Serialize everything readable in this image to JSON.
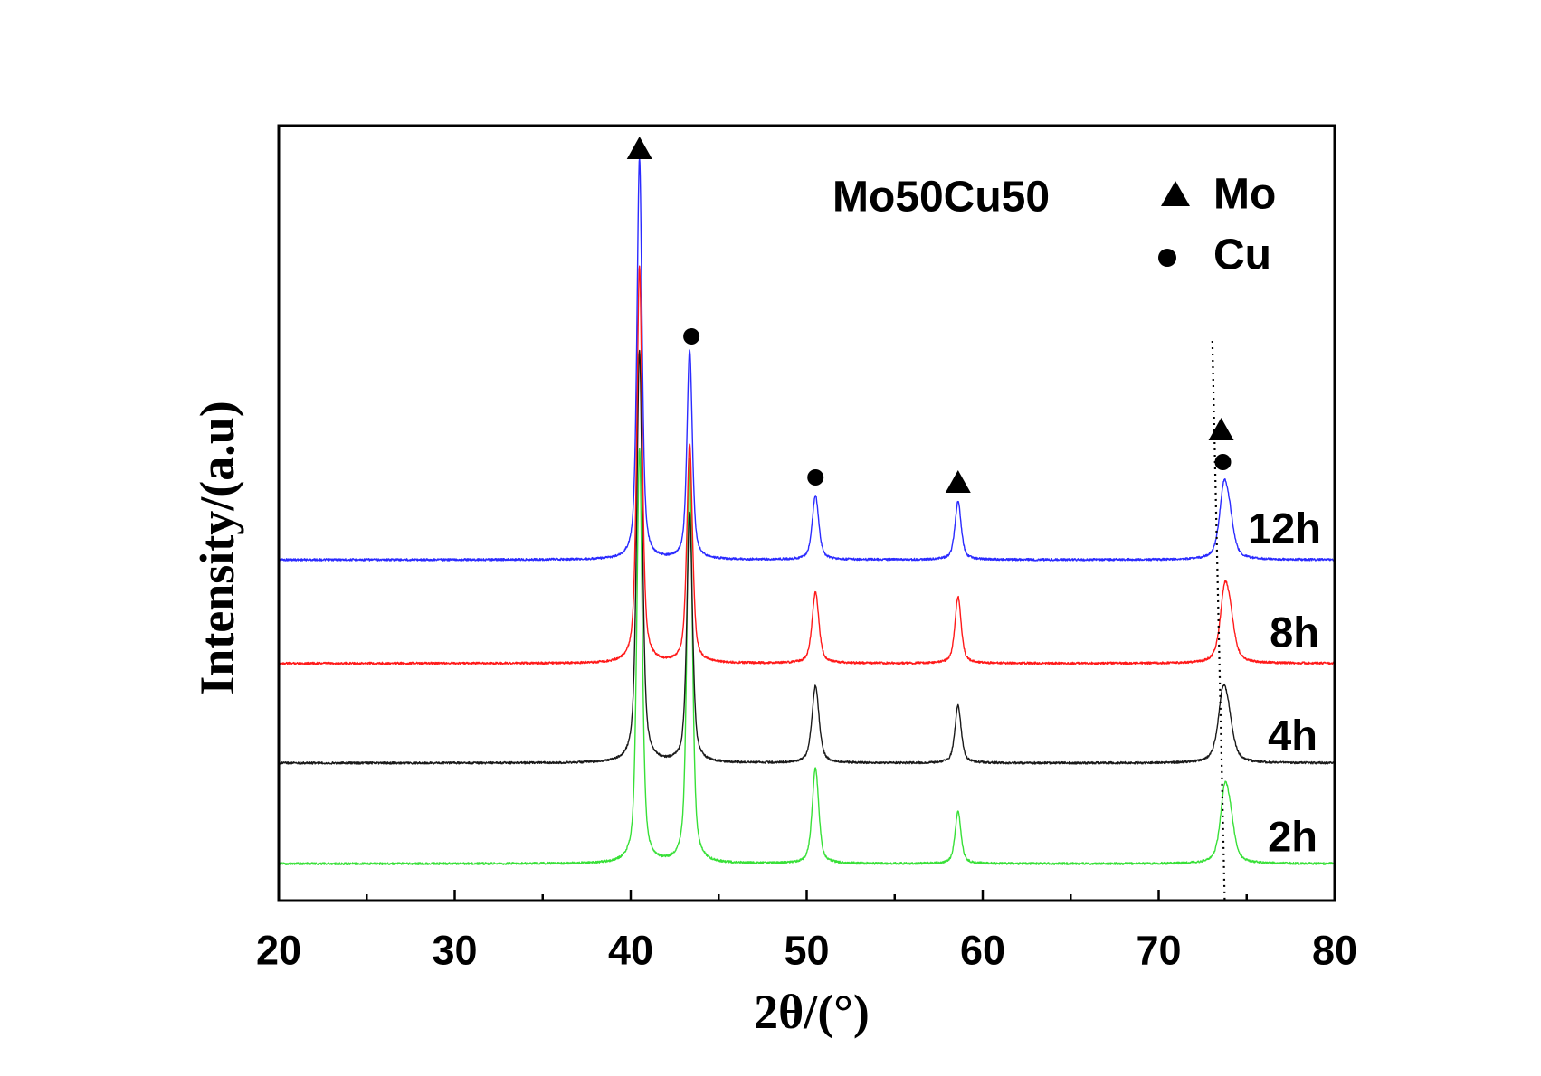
{
  "chart_data": {
    "type": "line",
    "title": "Mo50Cu50",
    "xlabel": "2θ/(°)",
    "ylabel": "Intensity/(a.u)",
    "xlim": [
      20,
      80
    ],
    "xticks": [
      20,
      30,
      40,
      50,
      60,
      70,
      80
    ],
    "xticklabels": [
      "20",
      "30",
      "40",
      "50",
      "60",
      "70",
      "80"
    ],
    "x_minor_step": 5,
    "y_ticks": false,
    "grid": false,
    "legend": {
      "placement": "top-right",
      "entries": [
        {
          "symbol": "triangle-icon",
          "label": "Mo"
        },
        {
          "symbol": "dot-icon",
          "label": "Cu"
        }
      ]
    },
    "series": [
      {
        "name": "12h",
        "color": "#2b2bff",
        "peaks": [
          {
            "x": 40.5,
            "intensity": 96.9,
            "fwhm": 0.34
          },
          {
            "x": 43.35,
            "intensity": 50.5,
            "fwhm": 0.36
          },
          {
            "x": 50.5,
            "intensity": 15.5,
            "fwhm": 0.44
          },
          {
            "x": 58.6,
            "intensity": 14.0,
            "fwhm": 0.42
          },
          {
            "x": 73.7,
            "intensity": 19.0,
            "fwhm": 0.6
          }
        ]
      },
      {
        "name": "8h",
        "color": "#ff1a1a",
        "peaks": [
          {
            "x": 40.5,
            "intensity": 95.7,
            "fwhm": 0.36
          },
          {
            "x": 43.35,
            "intensity": 52.9,
            "fwhm": 0.38
          },
          {
            "x": 50.5,
            "intensity": 17.1,
            "fwhm": 0.46
          },
          {
            "x": 58.6,
            "intensity": 16.0,
            "fwhm": 0.42
          },
          {
            "x": 73.75,
            "intensity": 19.5,
            "fwhm": 0.62
          }
        ]
      },
      {
        "name": "4h",
        "color": "#1a1a1a",
        "peaks": [
          {
            "x": 40.5,
            "intensity": 99.5,
            "fwhm": 0.38
          },
          {
            "x": 43.35,
            "intensity": 60.2,
            "fwhm": 0.38
          },
          {
            "x": 50.5,
            "intensity": 18.6,
            "fwhm": 0.48
          },
          {
            "x": 58.6,
            "intensity": 13.8,
            "fwhm": 0.42
          },
          {
            "x": 73.65,
            "intensity": 18.6,
            "fwhm": 0.66
          }
        ]
      },
      {
        "name": "2h",
        "color": "#38e038",
        "peaks": [
          {
            "x": 40.5,
            "intensity": 100.0,
            "fwhm": 0.36
          },
          {
            "x": 43.35,
            "intensity": 97.6,
            "fwhm": 0.36
          },
          {
            "x": 50.5,
            "intensity": 23.1,
            "fwhm": 0.44
          },
          {
            "x": 58.6,
            "intensity": 12.6,
            "fwhm": 0.4
          },
          {
            "x": 73.75,
            "intensity": 19.5,
            "fwhm": 0.6
          }
        ]
      }
    ],
    "peak_markers": [
      {
        "x": 40.5,
        "symbol": "triangle-icon"
      },
      {
        "x": 43.45,
        "symbol": "dot-icon"
      },
      {
        "x": 50.5,
        "symbol": "dot-icon"
      },
      {
        "x": 58.6,
        "symbol": "triangle-icon"
      },
      {
        "x": 73.55,
        "symbol": "triangle-icon"
      },
      {
        "x": 73.65,
        "symbol": "dot-icon"
      }
    ],
    "reference_line": {
      "x_top": 73.05,
      "x_bottom": 73.75,
      "style": "dotted"
    }
  }
}
